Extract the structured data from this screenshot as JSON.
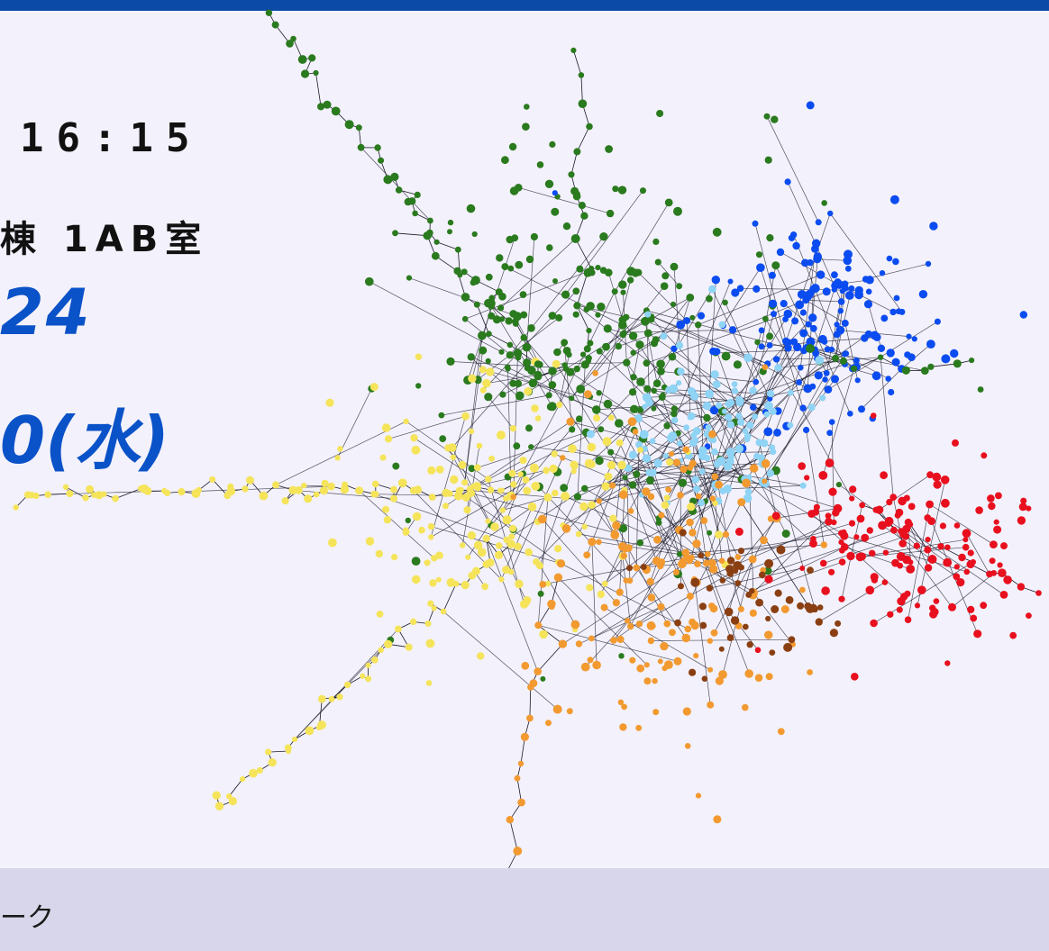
{
  "header": {
    "time": "16:15",
    "room": "棟 1AB室",
    "year_fragment": "24",
    "date_fragment": "0(水)"
  },
  "footer": {
    "text": "ーク"
  },
  "colors": {
    "top_bar": "#0b4aa6",
    "background": "#f3f1fb",
    "footer_band": "#d8d6ea",
    "accent_text": "#0a52c8"
  },
  "network_colors": [
    "#2a7a1e",
    "#0b4cf0",
    "#8fd3f5",
    "#f5e45a",
    "#f29a30",
    "#e8101e",
    "#8a3f12"
  ]
}
